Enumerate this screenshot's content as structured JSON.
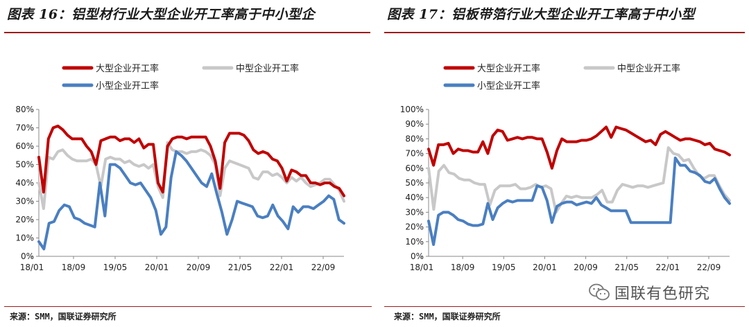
{
  "charts": [
    {
      "title": "图表 16：铝型材行业大型企业开工率高于中小型企",
      "source": "来源：SMM，国联证券研究所"
    },
    {
      "title": "图表 17：铝板带箔行业大型企业开工率高于中小型",
      "source": "来源：SMM，国联证券研究所"
    }
  ],
  "watermark": {
    "text": "国联有色研究",
    "icon": "wechat-icon"
  },
  "colors": {
    "large": "#c00000",
    "medium": "#c8c8c8",
    "small": "#4a7fc1",
    "rule": "#9b1c1c"
  },
  "chart_data": [
    {
      "type": "line",
      "title": "图表 16：铝型材行业大型企业开工率高于中小型企",
      "x_ticks": [
        "18/01",
        "18/09",
        "19/05",
        "20/01",
        "20/09",
        "21/05",
        "22/01",
        "22/09"
      ],
      "ylim": [
        0,
        80
      ],
      "y_ticks": [
        0,
        10,
        20,
        30,
        40,
        50,
        60,
        70,
        80
      ],
      "y_unit": "%",
      "legend": "top",
      "series": [
        {
          "name": "大型企业开工率",
          "color": "#c00000",
          "values": [
            54,
            35,
            64,
            70,
            71,
            69,
            66,
            64,
            64,
            64,
            60,
            57,
            50,
            63,
            64,
            65,
            65,
            63,
            64,
            64,
            62,
            64,
            59,
            61,
            61,
            40,
            35,
            60,
            64,
            65,
            65,
            64,
            65,
            65,
            65,
            65,
            60,
            52,
            37,
            62,
            67,
            67,
            67,
            66,
            63,
            58,
            56,
            57,
            56,
            53,
            52,
            48,
            41,
            47,
            46,
            44,
            44,
            40,
            40,
            39,
            40,
            40,
            38,
            37,
            33
          ]
        },
        {
          "name": "中型企业开工率",
          "color": "#c8c8c8",
          "values": [
            40,
            26,
            54,
            53,
            57,
            58,
            55,
            53,
            52,
            52,
            52,
            53,
            50,
            38,
            53,
            54,
            53,
            53,
            51,
            52,
            50,
            49,
            50,
            48,
            50,
            38,
            32,
            62,
            58,
            57,
            57,
            56,
            57,
            57,
            58,
            57,
            55,
            50,
            33,
            48,
            52,
            51,
            50,
            49,
            48,
            43,
            42,
            46,
            46,
            44,
            45,
            43,
            40,
            43,
            41,
            43,
            40,
            38,
            39,
            40,
            42,
            42,
            39,
            36,
            30
          ]
        },
        {
          "name": "小型企业开工率",
          "color": "#4a7fc1",
          "values": [
            8,
            4,
            18,
            19,
            25,
            28,
            27,
            21,
            20,
            18,
            17,
            16,
            40,
            22,
            50,
            50,
            48,
            44,
            40,
            39,
            40,
            36,
            32,
            25,
            12,
            16,
            43,
            57,
            55,
            52,
            48,
            44,
            40,
            38,
            45,
            34,
            24,
            12,
            20,
            30,
            29,
            28,
            27,
            22,
            21,
            22,
            28,
            22,
            19,
            15,
            27,
            24,
            27,
            27,
            26,
            28,
            30,
            33,
            31,
            20,
            18
          ]
        }
      ]
    },
    {
      "type": "line",
      "title": "图表 17：铝板带箔行业大型企业开工率高于中小型",
      "x_ticks": [
        "18/01",
        "18/09",
        "19/05",
        "20/01",
        "20/09",
        "21/05",
        "22/01",
        "22/09"
      ],
      "ylim": [
        0,
        100
      ],
      "y_ticks": [
        0,
        10,
        20,
        30,
        40,
        50,
        60,
        70,
        80,
        90,
        100
      ],
      "y_unit": "%",
      "legend": "top",
      "series": [
        {
          "name": "大型企业开工率",
          "color": "#c00000",
          "values": [
            73,
            62,
            76,
            76,
            77,
            70,
            73,
            72,
            72,
            71,
            71,
            78,
            70,
            82,
            86,
            85,
            79,
            80,
            81,
            80,
            81,
            81,
            80,
            80,
            71,
            60,
            72,
            80,
            78,
            78,
            78,
            79,
            79,
            80,
            82,
            85,
            88,
            81,
            88,
            87,
            86,
            84,
            82,
            80,
            78,
            79,
            76,
            83,
            85,
            83,
            81,
            79,
            80,
            80,
            79,
            78,
            76,
            77,
            73,
            72,
            71,
            69
          ]
        },
        {
          "name": "中型企业开工率",
          "color": "#c8c8c8",
          "values": [
            60,
            32,
            58,
            62,
            57,
            56,
            53,
            52,
            52,
            50,
            49,
            49,
            35,
            45,
            48,
            48,
            48,
            49,
            46,
            46,
            47,
            49,
            47,
            48,
            46,
            30,
            36,
            41,
            40,
            41,
            40,
            40,
            40,
            42,
            45,
            37,
            37,
            45,
            49,
            48,
            47,
            48,
            48,
            47,
            48,
            49,
            50,
            74,
            70,
            69,
            65,
            66,
            60,
            55,
            53,
            55,
            55,
            48,
            42,
            38
          ]
        },
        {
          "name": "小型企业开工率",
          "color": "#4a7fc1",
          "values": [
            24,
            8,
            28,
            30,
            30,
            28,
            25,
            24,
            22,
            21,
            21,
            22,
            36,
            25,
            33,
            36,
            38,
            37,
            38,
            38,
            38,
            38,
            48,
            47,
            38,
            23,
            34,
            36,
            37,
            37,
            35,
            36,
            37,
            36,
            40,
            35,
            33,
            31,
            31,
            31,
            31,
            23,
            23,
            23,
            23,
            23,
            23,
            23,
            23,
            23,
            67,
            62,
            62,
            58,
            57,
            55,
            51,
            50,
            53,
            46,
            40,
            36
          ]
        }
      ]
    }
  ]
}
